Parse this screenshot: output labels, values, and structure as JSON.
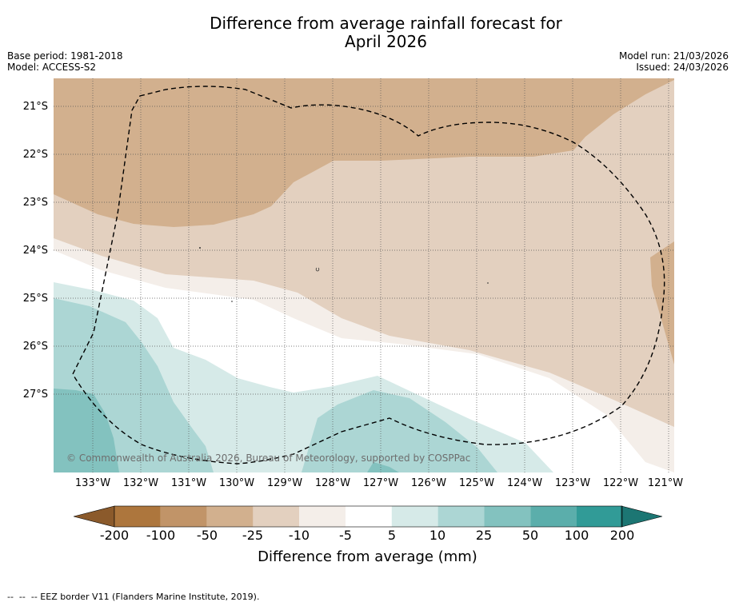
{
  "title_line1": "Difference from average rainfall forecast for",
  "title_line2": "April 2026",
  "base_period": "Base period: 1981-2018",
  "model": "Model: ACCESS-S2",
  "model_run": "Model run: 21/03/2026",
  "issued": "Issued: 24/03/2026",
  "y_axis_labels": [
    "21°S",
    "22°S",
    "23°S",
    "24°S",
    "25°S",
    "26°S",
    "27°S"
  ],
  "x_axis_labels": [
    "133°W",
    "132°W",
    "131°W",
    "130°W",
    "129°W",
    "128°W",
    "127°W",
    "126°W",
    "125°W",
    "124°W",
    "123°W",
    "122°W",
    "121°W"
  ],
  "copyright": "© Commonwealth of Australia 2026, Bureau of Meteorology, supported by COSPPac",
  "colorbar": {
    "title": "Difference from average (mm)",
    "ticks": [
      "-200",
      "-100",
      "-50",
      "-25",
      "-10",
      "-5",
      "5",
      "10",
      "25",
      "50",
      "100",
      "200"
    ],
    "colors": {
      "under": "#8b5a2b",
      "b_m200_m100": "#ad763d",
      "b_m100_m50": "#c19468",
      "b_m50_m25": "#d2b08e",
      "b_m25_m10": "#e3d0bf",
      "b_m10_m5": "#f4eee9",
      "b_m5_5": "#ffffff",
      "b_5_10": "#d6eae8",
      "b_10_25": "#acd6d4",
      "b_25_50": "#83c2bf",
      "b_50_100": "#5baeab",
      "b_100_200": "#319b97",
      "over": "#1c7673"
    }
  },
  "footer": "--  --  -- EEZ border V11 (Flanders Marine Institute, 2019)."
}
